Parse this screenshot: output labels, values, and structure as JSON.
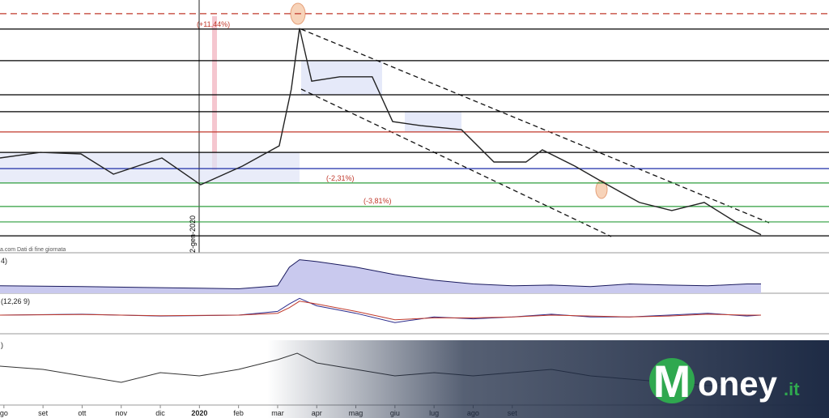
{
  "chart_data": [
    {
      "type": "line",
      "xlim": [
        -0.1,
        21.1
      ],
      "ylim": [
        0,
        100
      ],
      "xticks": [
        {
          "value": 0,
          "label": "go"
        },
        {
          "value": 1,
          "label": "set"
        },
        {
          "value": 2,
          "label": "ott"
        },
        {
          "value": 3,
          "label": "nov"
        },
        {
          "value": 4,
          "label": "dic"
        },
        {
          "value": 5,
          "label": "2020"
        },
        {
          "value": 6,
          "label": "feb"
        },
        {
          "value": 7,
          "label": "mar"
        },
        {
          "value": 8,
          "label": "apr"
        },
        {
          "value": 9,
          "label": "mag"
        },
        {
          "value": 10,
          "label": "giu"
        },
        {
          "value": 11,
          "label": "lug"
        },
        {
          "value": 12,
          "label": "ago"
        },
        {
          "value": 13,
          "label": "set"
        }
      ],
      "x": [
        -0.1,
        0.93,
        1.97,
        2.8,
        4.04,
        5.03,
        6.1,
        7.04,
        7.35,
        7.56,
        7.87,
        8.59,
        9.42,
        9.94,
        10.66,
        11.7,
        12.53,
        13.35,
        13.77,
        14.6,
        15.32,
        16.25,
        17.08,
        17.91,
        18.74,
        19.36
      ],
      "series": [
        {
          "color": "#222222",
          "values": [
            37.5,
            39.7,
            39.1,
            31.1,
            37.5,
            26.9,
            34.3,
            42.3,
            64.7,
            88.8,
            67.9,
            69.6,
            69.6,
            51.9,
            50.3,
            48.7,
            35.9,
            35.9,
            40.7,
            34.3,
            27.9,
            19.9,
            16.7,
            19.9,
            11.9,
            7.1
          ]
        }
      ],
      "reference_lines": [
        {
          "value": 94.6,
          "color": "#c0392b",
          "dash": true
        },
        {
          "value": 88.5,
          "color": "#000000",
          "dash": false
        },
        {
          "value": 76,
          "color": "#000000",
          "dash": false
        },
        {
          "value": 62.5,
          "color": "#000000",
          "dash": false
        },
        {
          "value": 55.8,
          "color": "#000000",
          "dash": false
        },
        {
          "value": 47.8,
          "color": "#c0392b",
          "dash": false
        },
        {
          "value": 39.7,
          "color": "#000000",
          "dash": false
        },
        {
          "value": 33.3,
          "color": "#1f2fa8",
          "dash": false
        },
        {
          "value": 27.6,
          "color": "#2e9e3e",
          "dash": false
        },
        {
          "value": 18.3,
          "color": "#2e9e3e",
          "dash": false
        },
        {
          "value": 12.2,
          "color": "#2e9e3e",
          "dash": false
        },
        {
          "value": 6.7,
          "color": "#000000",
          "dash": false
        }
      ]
    },
    {
      "type": "area",
      "title": "4)",
      "xlim": [
        -0.1,
        21.1
      ],
      "ylim": [
        0,
        100
      ],
      "x": [
        -0.1,
        2,
        4,
        6,
        7,
        7.3,
        7.56,
        8,
        9,
        10,
        11,
        12,
        13,
        14,
        15,
        16,
        17,
        18,
        19,
        19.36
      ],
      "series": [
        {
          "color": "#1a1a5e",
          "fill": "#c9c9ee",
          "values": [
            20,
            18,
            15,
            12,
            20,
            70,
            90,
            85,
            70,
            50,
            35,
            25,
            20,
            22,
            18,
            25,
            22,
            20,
            25,
            25
          ]
        }
      ]
    },
    {
      "type": "line",
      "title": "(12,26 9)",
      "xlim": [
        -0.1,
        21.1
      ],
      "ylim": [
        -1,
        1
      ],
      "x": [
        -0.1,
        2,
        4,
        6,
        7,
        7.3,
        7.56,
        8,
        9,
        10,
        11,
        12,
        13,
        14,
        15,
        16,
        17,
        18,
        19,
        19.36
      ],
      "series": [
        {
          "color": "#2b2b8c",
          "values": [
            0,
            0.05,
            -0.05,
            0,
            0.2,
            0.6,
            0.9,
            0.5,
            0.1,
            -0.4,
            -0.1,
            -0.2,
            -0.1,
            0.05,
            -0.1,
            -0.1,
            0,
            0.1,
            -0.05,
            0
          ]
        },
        {
          "color": "#c0392b",
          "values": [
            0,
            0.03,
            -0.03,
            0,
            0.1,
            0.4,
            0.75,
            0.6,
            0.2,
            -0.25,
            -0.15,
            -0.15,
            -0.1,
            0,
            -0.05,
            -0.1,
            -0.05,
            0.05,
            0,
            0
          ]
        }
      ]
    },
    {
      "type": "line",
      "title": ")",
      "xlim": [
        -0.1,
        21.1
      ],
      "ylim": [
        0,
        100
      ],
      "x": [
        -0.1,
        1,
        2,
        3,
        4,
        5,
        6,
        7,
        7.5,
        8,
        9,
        10,
        11,
        12,
        13,
        14,
        15,
        16,
        17,
        18,
        19,
        19.36
      ],
      "series": [
        {
          "color": "#333333",
          "values": [
            60,
            55,
            45,
            35,
            50,
            45,
            55,
            70,
            80,
            65,
            55,
            45,
            50,
            45,
            50,
            55,
            45,
            40,
            35,
            30,
            35,
            32
          ]
        }
      ]
    }
  ],
  "annotations": [
    "(+11,44%)",
    "(-2,31%)",
    "(-3,81%)",
    "2-gen-2020"
  ],
  "source_note": "a.com Dati di fine giornata",
  "logo": {
    "initial": "M",
    "rest": "oney",
    "suffix": ".it"
  }
}
